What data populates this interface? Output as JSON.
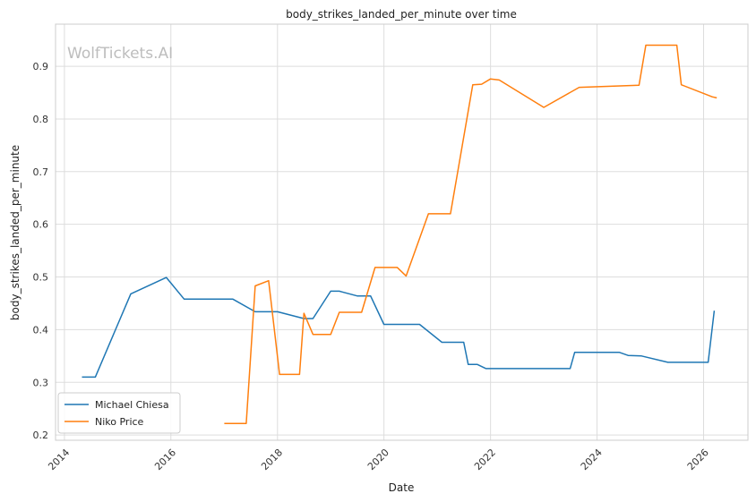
{
  "chart_data": {
    "type": "line",
    "title": "body_strikes_landed_per_minute over time",
    "xlabel": "Date",
    "ylabel": "body_strikes_landed_per_minute",
    "watermark": "WolfTickets.AI",
    "xlim": [
      "2013-11-01",
      "2026-11-01"
    ],
    "ylim": [
      0.19,
      0.98
    ],
    "x_ticks": [
      "2014",
      "2016",
      "2018",
      "2020",
      "2022",
      "2024",
      "2026"
    ],
    "y_ticks": [
      0.2,
      0.3,
      0.4,
      0.5,
      0.6,
      0.7,
      0.8,
      0.9
    ],
    "grid": true,
    "legend_position": "lower-left",
    "series": [
      {
        "name": "Michael Chiesa",
        "color": "#1f77b4",
        "points": [
          [
            "2014-05-01",
            0.31
          ],
          [
            "2014-08-01",
            0.31
          ],
          [
            "2015-04-01",
            0.468
          ],
          [
            "2015-12-01",
            0.499
          ],
          [
            "2016-04-01",
            0.458
          ],
          [
            "2017-03-01",
            0.458
          ],
          [
            "2017-08-01",
            0.434
          ],
          [
            "2018-01-01",
            0.434
          ],
          [
            "2018-07-01",
            0.421
          ],
          [
            "2018-09-01",
            0.421
          ],
          [
            "2019-01-01",
            0.473
          ],
          [
            "2019-03-01",
            0.473
          ],
          [
            "2019-07-01",
            0.464
          ],
          [
            "2019-10-01",
            0.464
          ],
          [
            "2020-01-01",
            0.41
          ],
          [
            "2020-09-01",
            0.41
          ],
          [
            "2021-02-01",
            0.376
          ],
          [
            "2021-07-01",
            0.376
          ],
          [
            "2021-08-01",
            0.334
          ],
          [
            "2021-10-01",
            0.334
          ],
          [
            "2021-12-01",
            0.326
          ],
          [
            "2023-07-01",
            0.326
          ],
          [
            "2023-08-01",
            0.357
          ],
          [
            "2024-06-01",
            0.357
          ],
          [
            "2024-08-01",
            0.351
          ],
          [
            "2024-11-01",
            0.35
          ],
          [
            "2025-05-01",
            0.338
          ],
          [
            "2026-02-01",
            0.338
          ],
          [
            "2026-03-15",
            0.436
          ]
        ]
      },
      {
        "name": "Niko Price",
        "color": "#ff7f0e",
        "points": [
          [
            "2017-01-01",
            0.222
          ],
          [
            "2017-06-01",
            0.222
          ],
          [
            "2017-08-01",
            0.483
          ],
          [
            "2017-11-01",
            0.493
          ],
          [
            "2018-01-15",
            0.315
          ],
          [
            "2018-06-01",
            0.315
          ],
          [
            "2018-07-01",
            0.431
          ],
          [
            "2018-09-01",
            0.391
          ],
          [
            "2019-01-01",
            0.391
          ],
          [
            "2019-03-01",
            0.433
          ],
          [
            "2019-08-01",
            0.433
          ],
          [
            "2019-11-01",
            0.518
          ],
          [
            "2020-04-01",
            0.518
          ],
          [
            "2020-06-01",
            0.502
          ],
          [
            "2020-11-01",
            0.62
          ],
          [
            "2021-04-01",
            0.62
          ],
          [
            "2021-09-01",
            0.865
          ],
          [
            "2021-11-01",
            0.866
          ],
          [
            "2022-01-01",
            0.876
          ],
          [
            "2022-03-01",
            0.874
          ],
          [
            "2023-01-01",
            0.822
          ],
          [
            "2023-09-01",
            0.86
          ],
          [
            "2024-10-15",
            0.864
          ],
          [
            "2024-12-01",
            0.94
          ],
          [
            "2025-07-01",
            0.94
          ],
          [
            "2025-08-01",
            0.865
          ],
          [
            "2026-03-01",
            0.842
          ],
          [
            "2026-04-01",
            0.84
          ]
        ]
      }
    ]
  }
}
